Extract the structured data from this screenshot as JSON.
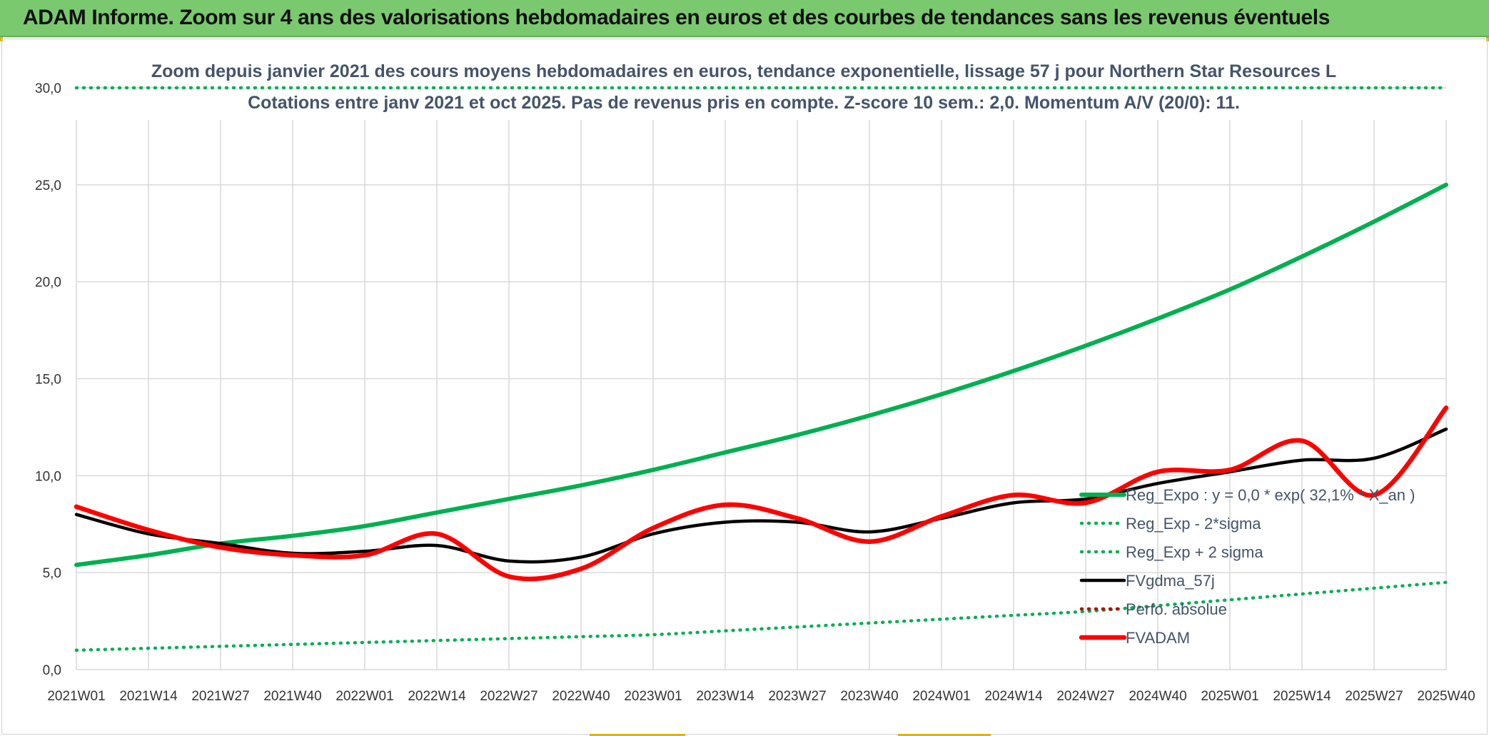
{
  "header": {
    "title": "ADAM Informe. Zoom sur 4 ans des valorisations hebdomadaires en euros et des courbes de tendances sans les revenus éventuels"
  },
  "colors": {
    "banner": "#7ac96f",
    "trend": "#00b050",
    "smooth": "#000000",
    "price": "#ff0000",
    "perf": "#c00000",
    "grid": "#d9d9d9"
  },
  "chart_data": {
    "type": "line",
    "title": "Zoom depuis janvier 2021 des cours moyens hebdomadaires en euros, tendance exponentielle, lissage 57 j pour Northern Star Resources L",
    "subtitle": "Cotations entre janv 2021 et oct 2025. Pas de revenus pris en compte. Z-score 10 sem.: 2,0. Momentum A/V (20/0): 11.",
    "xlabel": "",
    "ylabel": "",
    "ylim": [
      0,
      30
    ],
    "y_ticks": [
      "0,0",
      "5,0",
      "10,0",
      "15,0",
      "20,0",
      "25,0",
      "30,0"
    ],
    "x_ticks": [
      "2021W01",
      "2021W14",
      "2021W27",
      "2021W40",
      "2022W01",
      "2022W14",
      "2022W27",
      "2022W40",
      "2023W01",
      "2023W14",
      "2023W27",
      "2023W40",
      "2024W01",
      "2024W14",
      "2024W27",
      "2024W40",
      "2025W01",
      "2025W14",
      "2025W27",
      "2025W40"
    ],
    "grid": true,
    "legend_position": "right",
    "series": [
      {
        "name": "Reg_Expo : y = 0,0 * exp( 32,1% *  X_an )",
        "style": "solid-green-thick",
        "values": [
          5.4,
          5.9,
          6.5,
          6.9,
          7.4,
          8.1,
          8.8,
          9.5,
          10.3,
          11.2,
          12.1,
          13.1,
          14.2,
          15.4,
          16.7,
          18.1,
          19.6,
          21.3,
          23.1,
          25.0
        ]
      },
      {
        "name": "Reg_Exp - 2*sigma",
        "style": "dotted-green",
        "values": [
          1.0,
          1.1,
          1.2,
          1.3,
          1.4,
          1.5,
          1.6,
          1.7,
          1.8,
          2.0,
          2.2,
          2.4,
          2.6,
          2.8,
          3.0,
          3.3,
          3.6,
          3.9,
          4.2,
          4.5
        ]
      },
      {
        "name": "Reg_Exp + 2 sigma",
        "style": "dotted-green",
        "values": [
          30.0,
          30.0,
          30.0,
          30.0,
          30.0,
          30.0,
          30.0,
          30.0,
          30.0,
          30.0,
          30.0,
          30.0,
          30.0,
          30.0,
          30.0,
          30.0,
          30.0,
          30.0,
          30.0,
          30.0
        ]
      },
      {
        "name": "FVgdma_57j",
        "style": "solid-black",
        "values": [
          8.0,
          7.0,
          6.5,
          6.0,
          6.1,
          6.4,
          5.6,
          5.8,
          7.0,
          7.6,
          7.6,
          7.1,
          7.8,
          8.6,
          8.8,
          9.6,
          10.2,
          10.8,
          10.9,
          12.4
        ]
      },
      {
        "name": "Perfo. absolue",
        "style": "dotted-darkred",
        "values": []
      },
      {
        "name": "FVADAM",
        "style": "solid-red-thick",
        "values": [
          8.4,
          7.2,
          6.3,
          5.9,
          5.9,
          7.0,
          4.8,
          5.2,
          7.3,
          8.5,
          7.8,
          6.6,
          7.9,
          9.0,
          8.6,
          10.2,
          10.3,
          11.8,
          9.0,
          13.5
        ]
      }
    ]
  }
}
